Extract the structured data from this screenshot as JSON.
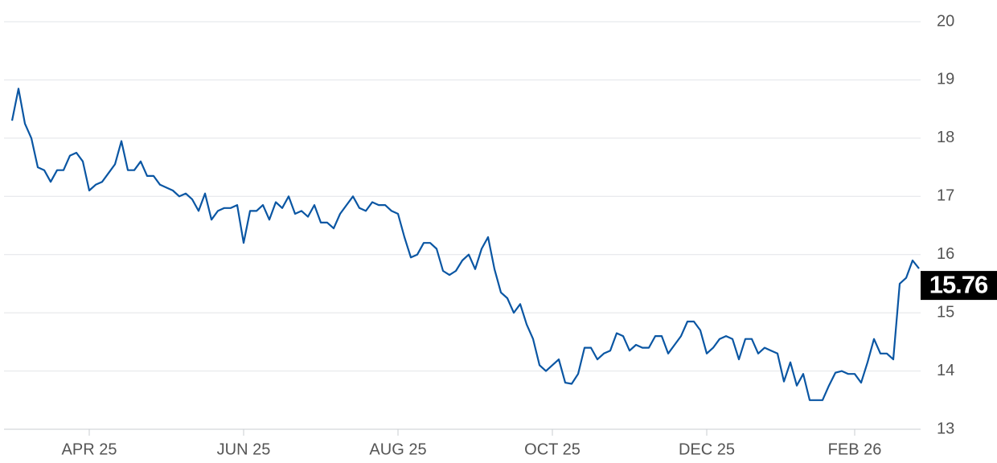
{
  "chart_data": {
    "type": "line",
    "color": "#0a56a3",
    "grid": true,
    "ylim": [
      13,
      20
    ],
    "yticks": [
      13,
      14,
      15,
      16,
      17,
      18,
      19,
      20
    ],
    "categories": [
      null,
      null,
      null,
      null,
      null,
      null,
      null,
      null,
      null,
      null,
      null,
      null,
      "APR 25",
      null,
      null,
      null,
      null,
      null,
      null,
      null,
      null,
      null,
      null,
      null,
      null,
      null,
      null,
      null,
      null,
      null,
      null,
      null,
      null,
      null,
      null,
      null,
      "JUN 25",
      null,
      null,
      null,
      null,
      null,
      null,
      null,
      null,
      null,
      null,
      null,
      null,
      null,
      null,
      null,
      null,
      null,
      null,
      null,
      null,
      null,
      null,
      null,
      "AUG 25",
      null,
      null,
      null,
      null,
      null,
      null,
      null,
      null,
      null,
      null,
      null,
      null,
      null,
      null,
      null,
      null,
      null,
      null,
      null,
      null,
      null,
      null,
      null,
      "OCT 25",
      null,
      null,
      null,
      null,
      null,
      null,
      null,
      null,
      null,
      null,
      null,
      null,
      null,
      null,
      null,
      null,
      null,
      null,
      null,
      null,
      null,
      null,
      null,
      "DEC 25",
      null,
      null,
      null,
      null,
      null,
      null,
      null,
      null,
      null,
      null,
      null,
      null,
      null,
      null,
      null,
      null,
      null,
      null,
      null,
      null,
      null,
      null,
      "FEB 26",
      null,
      null,
      null,
      null,
      null,
      null,
      null,
      null,
      null,
      null
    ],
    "values": [
      18.3,
      18.85,
      18.25,
      18.0,
      17.5,
      17.45,
      17.25,
      17.45,
      17.45,
      17.7,
      17.75,
      17.6,
      17.1,
      17.2,
      17.25,
      17.4,
      17.55,
      17.95,
      17.45,
      17.45,
      17.6,
      17.35,
      17.35,
      17.2,
      17.15,
      17.1,
      17.0,
      17.05,
      16.95,
      16.75,
      17.05,
      16.6,
      16.75,
      16.8,
      16.8,
      16.85,
      16.2,
      16.75,
      16.75,
      16.85,
      16.6,
      16.9,
      16.8,
      17.0,
      16.7,
      16.75,
      16.65,
      16.85,
      16.55,
      16.55,
      16.45,
      16.7,
      16.85,
      17.0,
      16.8,
      16.75,
      16.9,
      16.85,
      16.85,
      16.75,
      16.7,
      16.3,
      15.95,
      16.0,
      16.2,
      16.2,
      16.1,
      15.72,
      15.65,
      15.72,
      15.9,
      16.0,
      15.75,
      16.1,
      16.3,
      15.75,
      15.35,
      15.25,
      15.0,
      15.15,
      14.8,
      14.55,
      14.1,
      14.0,
      14.1,
      14.2,
      13.8,
      13.78,
      13.95,
      14.4,
      14.4,
      14.2,
      14.3,
      14.35,
      14.65,
      14.6,
      14.35,
      14.45,
      14.4,
      14.4,
      14.6,
      14.6,
      14.3,
      14.45,
      14.6,
      14.85,
      14.85,
      14.7,
      14.3,
      14.4,
      14.55,
      14.6,
      14.55,
      14.2,
      14.55,
      14.55,
      14.3,
      14.4,
      14.35,
      14.3,
      13.82,
      14.15,
      13.75,
      13.95,
      13.5,
      13.5,
      13.5,
      13.75,
      13.97,
      14.0,
      13.95,
      13.95,
      13.8,
      14.15,
      14.55,
      14.3,
      14.3,
      14.2,
      15.5,
      15.6,
      15.9,
      15.76
    ]
  }
}
